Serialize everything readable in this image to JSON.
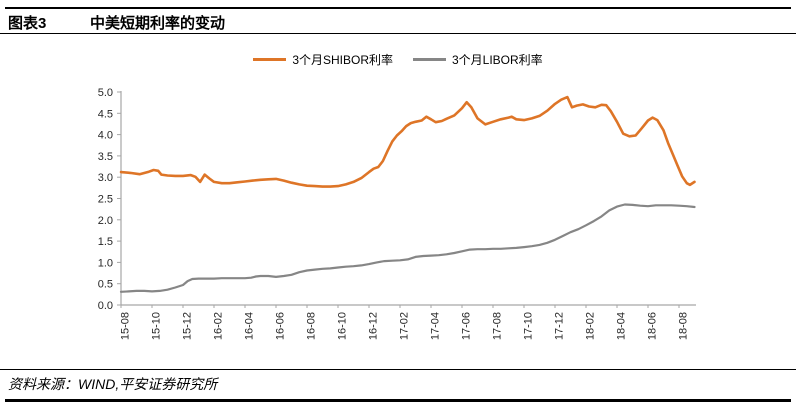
{
  "header": {
    "chart_label": "图表3",
    "chart_title": "中美短期利率的变动"
  },
  "footer": {
    "source_text": "资料来源：WIND,平安证券研究所"
  },
  "chart_data": {
    "type": "line",
    "title": "中美短期利率的变动",
    "xlabel": "",
    "ylabel": "",
    "ylim": [
      0,
      5
    ],
    "ytick_step": 0.5,
    "y_ticks": [
      "0.0",
      "0.5",
      "1.0",
      "1.5",
      "2.0",
      "2.5",
      "3.0",
      "3.5",
      "4.0",
      "4.5",
      "5.0"
    ],
    "x_tick_labels": [
      "15-08",
      "15-10",
      "15-12",
      "16-02",
      "16-04",
      "16-06",
      "16-08",
      "16-10",
      "16-12",
      "17-02",
      "17-04",
      "17-06",
      "17-08",
      "17-10",
      "17-12",
      "18-02",
      "18-04",
      "18-06",
      "18-08"
    ],
    "x_unit": "point x = months since 2015-08, ticks every 2 months",
    "grid": false,
    "legend_position": "top",
    "axis_color": "#A6A6A6",
    "tick_label_color": "#262626",
    "series": [
      {
        "key": "shibor-line",
        "name": "3个月SHIBOR利率",
        "color": "#DE7527",
        "stroke_width": 2.6,
        "points": [
          [
            0,
            3.12
          ],
          [
            0.6,
            3.1
          ],
          [
            1.2,
            3.07
          ],
          [
            1.8,
            3.13
          ],
          [
            2.1,
            3.17
          ],
          [
            2.4,
            3.15
          ],
          [
            2.6,
            3.06
          ],
          [
            3,
            3.04
          ],
          [
            3.5,
            3.03
          ],
          [
            4,
            3.03
          ],
          [
            4.5,
            3.05
          ],
          [
            4.8,
            3.01
          ],
          [
            5.1,
            2.89
          ],
          [
            5.4,
            3.06
          ],
          [
            5.7,
            2.97
          ],
          [
            6,
            2.89
          ],
          [
            6.5,
            2.86
          ],
          [
            7,
            2.86
          ],
          [
            7.5,
            2.88
          ],
          [
            8,
            2.9
          ],
          [
            8.5,
            2.92
          ],
          [
            9,
            2.94
          ],
          [
            9.5,
            2.95
          ],
          [
            10,
            2.96
          ],
          [
            10.5,
            2.92
          ],
          [
            11,
            2.87
          ],
          [
            11.5,
            2.83
          ],
          [
            12,
            2.8
          ],
          [
            12.5,
            2.79
          ],
          [
            13,
            2.78
          ],
          [
            13.5,
            2.78
          ],
          [
            14,
            2.79
          ],
          [
            14.5,
            2.83
          ],
          [
            15,
            2.89
          ],
          [
            15.5,
            2.98
          ],
          [
            16,
            3.12
          ],
          [
            16.3,
            3.2
          ],
          [
            16.6,
            3.24
          ],
          [
            16.9,
            3.38
          ],
          [
            17.2,
            3.62
          ],
          [
            17.5,
            3.84
          ],
          [
            17.8,
            3.98
          ],
          [
            18.1,
            4.08
          ],
          [
            18.4,
            4.2
          ],
          [
            18.7,
            4.27
          ],
          [
            19,
            4.3
          ],
          [
            19.4,
            4.33
          ],
          [
            19.7,
            4.42
          ],
          [
            20,
            4.36
          ],
          [
            20.3,
            4.29
          ],
          [
            20.7,
            4.32
          ],
          [
            21,
            4.37
          ],
          [
            21.5,
            4.45
          ],
          [
            22,
            4.62
          ],
          [
            22.3,
            4.76
          ],
          [
            22.6,
            4.64
          ],
          [
            23,
            4.38
          ],
          [
            23.5,
            4.24
          ],
          [
            24,
            4.3
          ],
          [
            24.5,
            4.36
          ],
          [
            25,
            4.4
          ],
          [
            25.2,
            4.42
          ],
          [
            25.5,
            4.36
          ],
          [
            26,
            4.34
          ],
          [
            26.5,
            4.38
          ],
          [
            27,
            4.44
          ],
          [
            27.5,
            4.56
          ],
          [
            28,
            4.72
          ],
          [
            28.4,
            4.82
          ],
          [
            28.8,
            4.88
          ],
          [
            29.1,
            4.64
          ],
          [
            29.4,
            4.68
          ],
          [
            29.8,
            4.71
          ],
          [
            30.2,
            4.66
          ],
          [
            30.6,
            4.64
          ],
          [
            31,
            4.7
          ],
          [
            31.3,
            4.69
          ],
          [
            31.6,
            4.55
          ],
          [
            32,
            4.3
          ],
          [
            32.4,
            4.02
          ],
          [
            32.8,
            3.96
          ],
          [
            33.2,
            3.98
          ],
          [
            33.6,
            4.15
          ],
          [
            34,
            4.33
          ],
          [
            34.3,
            4.4
          ],
          [
            34.6,
            4.34
          ],
          [
            35,
            4.1
          ],
          [
            35.3,
            3.8
          ],
          [
            35.6,
            3.54
          ],
          [
            35.9,
            3.28
          ],
          [
            36.2,
            3.02
          ],
          [
            36.5,
            2.86
          ],
          [
            36.7,
            2.82
          ],
          [
            37,
            2.89
          ]
        ]
      },
      {
        "key": "libor-line",
        "name": "3个月LIBOR利率",
        "color": "#868686",
        "stroke_width": 2.2,
        "points": [
          [
            0,
            0.31
          ],
          [
            0.5,
            0.32
          ],
          [
            1,
            0.33
          ],
          [
            1.5,
            0.33
          ],
          [
            2,
            0.32
          ],
          [
            2.5,
            0.33
          ],
          [
            3,
            0.36
          ],
          [
            3.5,
            0.41
          ],
          [
            4,
            0.47
          ],
          [
            4.3,
            0.56
          ],
          [
            4.6,
            0.61
          ],
          [
            5,
            0.62
          ],
          [
            5.5,
            0.62
          ],
          [
            6,
            0.62
          ],
          [
            6.5,
            0.63
          ],
          [
            7,
            0.63
          ],
          [
            7.5,
            0.63
          ],
          [
            8,
            0.63
          ],
          [
            8.4,
            0.64
          ],
          [
            8.7,
            0.67
          ],
          [
            9,
            0.68
          ],
          [
            9.5,
            0.68
          ],
          [
            10,
            0.66
          ],
          [
            10.5,
            0.68
          ],
          [
            11,
            0.71
          ],
          [
            11.5,
            0.77
          ],
          [
            12,
            0.81
          ],
          [
            12.5,
            0.83
          ],
          [
            13,
            0.85
          ],
          [
            13.5,
            0.86
          ],
          [
            14,
            0.88
          ],
          [
            14.5,
            0.9
          ],
          [
            15,
            0.91
          ],
          [
            15.5,
            0.93
          ],
          [
            16,
            0.96
          ],
          [
            16.5,
            1.0
          ],
          [
            17,
            1.03
          ],
          [
            17.5,
            1.04
          ],
          [
            18,
            1.05
          ],
          [
            18.5,
            1.07
          ],
          [
            19,
            1.13
          ],
          [
            19.5,
            1.15
          ],
          [
            20,
            1.16
          ],
          [
            20.5,
            1.17
          ],
          [
            21,
            1.19
          ],
          [
            21.5,
            1.22
          ],
          [
            22,
            1.26
          ],
          [
            22.5,
            1.3
          ],
          [
            23,
            1.31
          ],
          [
            23.5,
            1.31
          ],
          [
            24,
            1.32
          ],
          [
            24.5,
            1.32
          ],
          [
            25,
            1.33
          ],
          [
            25.5,
            1.34
          ],
          [
            26,
            1.36
          ],
          [
            26.5,
            1.38
          ],
          [
            27,
            1.41
          ],
          [
            27.5,
            1.46
          ],
          [
            28,
            1.53
          ],
          [
            28.5,
            1.62
          ],
          [
            29,
            1.71
          ],
          [
            29.5,
            1.78
          ],
          [
            30,
            1.87
          ],
          [
            30.5,
            1.97
          ],
          [
            31,
            2.08
          ],
          [
            31.5,
            2.22
          ],
          [
            32,
            2.31
          ],
          [
            32.5,
            2.36
          ],
          [
            33,
            2.35
          ],
          [
            33.5,
            2.33
          ],
          [
            34,
            2.32
          ],
          [
            34.5,
            2.34
          ],
          [
            35,
            2.34
          ],
          [
            35.5,
            2.34
          ],
          [
            36,
            2.33
          ],
          [
            36.5,
            2.32
          ],
          [
            37,
            2.3
          ]
        ]
      }
    ]
  }
}
